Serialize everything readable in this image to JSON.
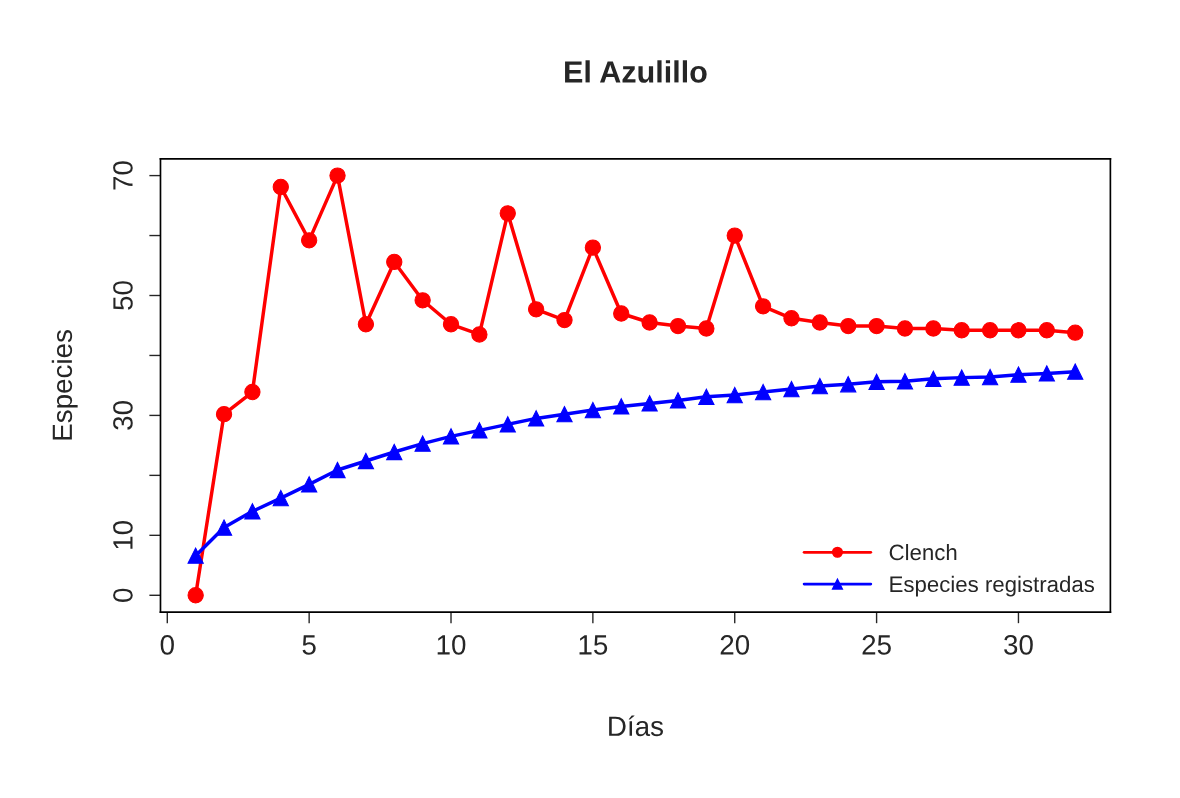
{
  "chart_data": {
    "type": "line",
    "title": "El Azulillo",
    "xlabel": "Días",
    "ylabel": "Especies",
    "x": [
      1,
      2,
      3,
      4,
      5,
      6,
      7,
      8,
      9,
      10,
      11,
      12,
      13,
      14,
      15,
      16,
      17,
      18,
      19,
      20,
      21,
      22,
      23,
      24,
      25,
      26,
      27,
      28,
      29,
      30,
      31,
      32
    ],
    "series": [
      {
        "name": "Clench",
        "color": "#ff0000",
        "marker": "circle",
        "values": [
          0,
          30.2,
          33.9,
          68.1,
          59.2,
          70,
          45.2,
          55.6,
          49.2,
          45.2,
          43.5,
          63.7,
          47.7,
          45.9,
          58.0,
          47.0,
          45.5,
          44.9,
          44.5,
          60.0,
          48.2,
          46.2,
          45.5,
          44.9,
          44.9,
          44.5,
          44.5,
          44.2,
          44.2,
          44.2,
          44.2,
          43.8
        ]
      },
      {
        "name": "Especies registradas",
        "color": "#0000ff",
        "marker": "triangle",
        "values": [
          6.6,
          11.3,
          14.0,
          16.2,
          18.5,
          20.9,
          22.4,
          23.9,
          25.3,
          26.5,
          27.5,
          28.5,
          29.5,
          30.2,
          30.9,
          31.5,
          32.0,
          32.5,
          33.1,
          33.4,
          33.9,
          34.4,
          34.9,
          35.2,
          35.6,
          35.7,
          36.1,
          36.3,
          36.4,
          36.8,
          37.0,
          37.3
        ]
      }
    ],
    "xlim": [
      -0.24,
      33.24
    ],
    "xticks": [
      0,
      5,
      10,
      15,
      20,
      25,
      30
    ],
    "ylim": [
      -2.8,
      72.8
    ],
    "yticks": [
      0,
      10,
      {
        "value": 20,
        "label": null
      },
      30,
      {
        "value": 40,
        "label": null
      },
      50,
      {
        "value": 60,
        "label": null
      },
      70
    ],
    "grid": false,
    "legend": "bottom right",
    "line_style": "solid"
  }
}
